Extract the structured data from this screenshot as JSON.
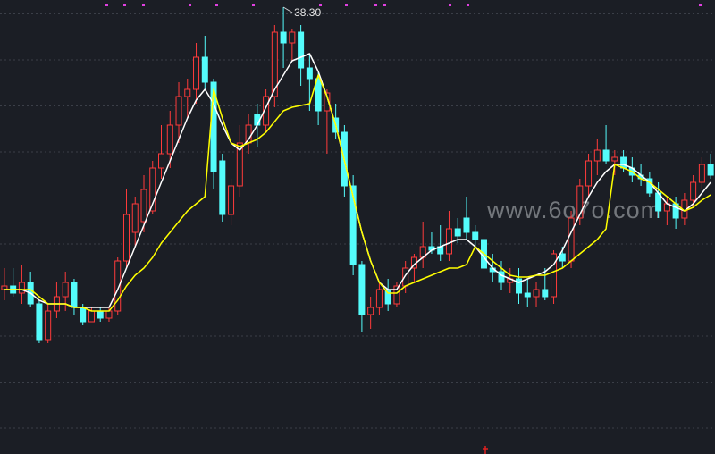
{
  "chart_data": {
    "type": "candlestick",
    "open": [
      30.4,
      30.5,
      30.3,
      30.6,
      30.0,
      29.0,
      29.8,
      30.2,
      30.6,
      29.9,
      29.5,
      29.8,
      29.6,
      29.8,
      31.2,
      32.0,
      32.3,
      32.6,
      33.8,
      34.2,
      35.0,
      35.8,
      36.0,
      36.9,
      36.2,
      34.0,
      32.5,
      33.3,
      34.5,
      35.3,
      35.0,
      35.8,
      37.6,
      37.3,
      37.6,
      36.6,
      36.3,
      35.4,
      35.2,
      34.8,
      33.3,
      31.1,
      29.7,
      29.9,
      30.4,
      30.0,
      30.5,
      31.0,
      31.3,
      31.6,
      31.6,
      31.4,
      32.1,
      32.4,
      32.0,
      31.8,
      31.0,
      30.9,
      30.6,
      30.7,
      30.3,
      30.2,
      30.4,
      30.2,
      31.4,
      31.2,
      32.4,
      33.3,
      34.0,
      34.3,
      34.0,
      34.1,
      33.8,
      33.6,
      33.5,
      33.1,
      32.6,
      32.8,
      32.4,
      32.9,
      33.4,
      33.9
    ],
    "high": [
      31.0,
      31.0,
      31.1,
      30.9,
      30.1,
      30.0,
      30.6,
      30.9,
      30.7,
      30.0,
      29.9,
      29.9,
      29.9,
      31.3,
      33.2,
      33.0,
      33.6,
      34.0,
      35.0,
      35.4,
      36.2,
      36.3,
      37.3,
      37.5,
      36.3,
      34.2,
      33.5,
      35.0,
      35.3,
      35.6,
      36.0,
      37.8,
      38.3,
      37.7,
      37.8,
      37.0,
      36.5,
      36.0,
      35.6,
      35.0,
      33.6,
      31.2,
      30.2,
      30.6,
      30.7,
      30.6,
      31.2,
      31.4,
      32.3,
      32.0,
      32.2,
      32.6,
      32.4,
      33.0,
      32.2,
      32.0,
      31.4,
      31.2,
      31.0,
      31.0,
      30.7,
      30.6,
      31.0,
      31.5,
      31.6,
      32.6,
      33.5,
      34.2,
      34.6,
      35.0,
      34.3,
      34.3,
      34.1,
      33.9,
      33.7,
      33.4,
      33.0,
      33.0,
      33.1,
      33.6,
      34.1,
      34.2
    ],
    "low": [
      30.1,
      30.2,
      30.0,
      29.9,
      28.9,
      28.9,
      29.6,
      29.8,
      29.7,
      29.4,
      29.5,
      29.5,
      29.5,
      29.7,
      31.0,
      31.6,
      32.0,
      32.5,
      33.5,
      33.8,
      34.5,
      35.2,
      35.6,
      36.0,
      33.2,
      32.3,
      32.2,
      33.0,
      34.2,
      34.4,
      34.8,
      35.5,
      36.6,
      36.8,
      36.1,
      35.4,
      35.0,
      34.2,
      34.6,
      33.0,
      30.8,
      29.2,
      29.3,
      29.7,
      29.8,
      29.9,
      30.3,
      30.6,
      31.0,
      31.4,
      31.2,
      31.2,
      31.7,
      31.8,
      31.6,
      30.8,
      30.6,
      30.4,
      30.3,
      30.0,
      29.9,
      29.9,
      30.1,
      30.0,
      31.0,
      31.0,
      32.2,
      33.0,
      33.6,
      33.9,
      33.6,
      33.7,
      33.4,
      33.3,
      33.0,
      32.4,
      32.2,
      32.1,
      32.2,
      32.7,
      33.2,
      33.5
    ],
    "close": [
      30.5,
      30.3,
      30.6,
      30.0,
      29.0,
      29.8,
      30.2,
      30.6,
      29.9,
      29.5,
      29.8,
      29.6,
      29.8,
      31.2,
      32.5,
      32.8,
      33.2,
      33.8,
      34.2,
      35.0,
      35.8,
      36.0,
      36.9,
      36.2,
      33.7,
      32.5,
      33.3,
      34.5,
      35.0,
      35.0,
      35.8,
      37.6,
      37.3,
      37.6,
      36.6,
      36.3,
      35.4,
      35.9,
      34.8,
      33.3,
      31.1,
      29.7,
      29.9,
      30.4,
      30.0,
      30.5,
      31.0,
      31.3,
      31.6,
      31.5,
      31.4,
      32.1,
      31.9,
      32.0,
      31.8,
      31.0,
      30.9,
      30.6,
      30.7,
      30.3,
      30.2,
      30.4,
      30.2,
      31.4,
      31.2,
      32.4,
      33.3,
      34.0,
      34.3,
      34.0,
      34.1,
      33.8,
      33.6,
      33.5,
      33.1,
      32.6,
      32.8,
      32.4,
      32.9,
      33.4,
      33.9,
      33.6
    ],
    "up_color": "#ff3b3b",
    "down_color": "#54fcfc",
    "lines": [
      {
        "color": "#ffffff",
        "values": [
          30.4,
          30.4,
          30.4,
          30.3,
          30.1,
          30.0,
          30.0,
          30.0,
          29.9,
          29.9,
          29.9,
          29.9,
          29.9,
          30.4,
          31.0,
          31.6,
          32.2,
          32.8,
          33.4,
          34.0,
          34.6,
          35.2,
          35.7,
          36.0,
          35.6,
          35.0,
          34.5,
          34.3,
          34.6,
          35.0,
          35.5,
          36.0,
          36.4,
          36.8,
          36.9,
          37.0,
          36.5,
          35.8,
          35.0,
          34.0,
          33.0,
          32.0,
          31.2,
          30.6,
          30.4,
          30.4,
          30.8,
          31.1,
          31.3,
          31.5,
          31.6,
          31.7,
          31.8,
          31.8,
          31.6,
          31.3,
          31.0,
          30.8,
          30.7,
          30.6,
          30.7,
          30.8,
          30.9,
          31.1,
          31.5,
          32.0,
          32.5,
          33.0,
          33.4,
          33.7,
          33.9,
          33.9,
          33.8,
          33.6,
          33.4,
          33.1,
          32.8,
          32.7,
          32.6,
          32.8,
          33.1,
          33.4
        ]
      },
      {
        "color": "#ffff00",
        "values": [
          30.4,
          30.4,
          30.4,
          30.4,
          30.2,
          30.0,
          30.0,
          30.0,
          29.9,
          29.9,
          29.8,
          29.8,
          29.8,
          30.1,
          30.5,
          30.8,
          31.0,
          31.3,
          31.7,
          32.0,
          32.3,
          32.6,
          32.8,
          33.0,
          36.0,
          35.2,
          34.5,
          34.4,
          34.5,
          34.6,
          34.8,
          35.1,
          35.4,
          35.5,
          35.55,
          35.6,
          36.4,
          35.8,
          35.0,
          34.0,
          33.0,
          32.0,
          31.2,
          30.6,
          30.3,
          30.3,
          30.5,
          30.6,
          30.7,
          30.8,
          30.9,
          31.0,
          31.0,
          31.1,
          31.6,
          31.4,
          31.2,
          31.0,
          30.8,
          30.75,
          30.75,
          30.8,
          30.8,
          30.9,
          31.0,
          31.2,
          31.4,
          31.6,
          31.8,
          32.1,
          33.9,
          33.8,
          33.7,
          33.5,
          33.4,
          33.2,
          33.0,
          32.8,
          32.6,
          32.7,
          32.9,
          33.05
        ]
      }
    ],
    "ylim": [
      25.8,
      38.5
    ],
    "max_label": {
      "value": 38.3,
      "label": "38.30"
    },
    "watermark": "www.6o7o.com"
  }
}
